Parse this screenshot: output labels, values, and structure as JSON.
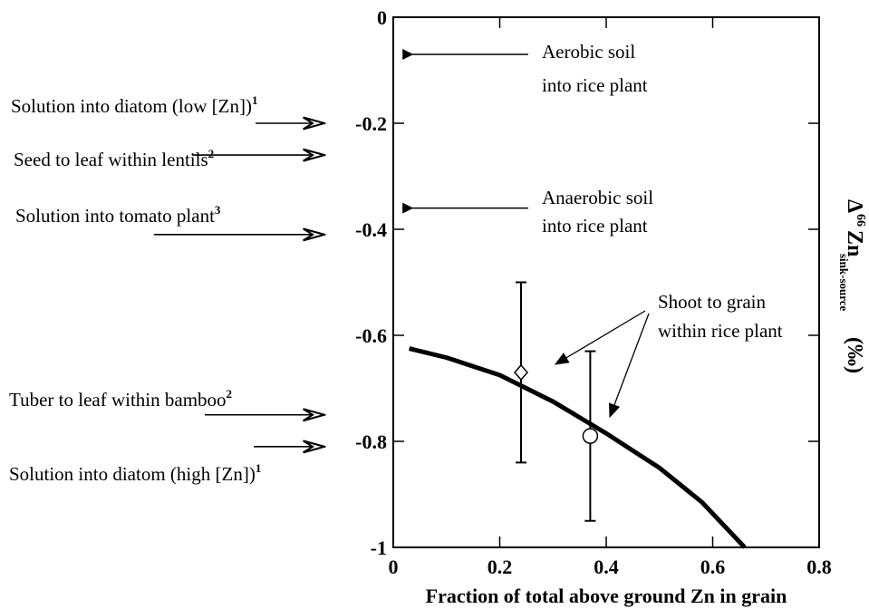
{
  "chart_data": {
    "type": "scatter",
    "xlabel": "Fraction of total above ground Zn in grain",
    "ylabel": {
      "delta": "Δ",
      "mass": "66",
      "element": "Zn",
      "subscript": "sink-source",
      "unit": "(‰)"
    },
    "xlim": [
      0,
      0.8
    ],
    "ylim": [
      -1,
      0
    ],
    "x_ticks": [
      {
        "value": 0,
        "label": "0"
      },
      {
        "value": 0.2,
        "label": "0.2"
      },
      {
        "value": 0.4,
        "label": "0.4"
      },
      {
        "value": 0.6,
        "label": "0.6"
      },
      {
        "value": 0.8,
        "label": "0.8"
      }
    ],
    "y_ticks": [
      {
        "value": 0,
        "label": "0"
      },
      {
        "value": -0.2,
        "label": "-0.2"
      },
      {
        "value": -0.4,
        "label": "-0.4"
      },
      {
        "value": -0.6,
        "label": "-0.6"
      },
      {
        "value": -0.8,
        "label": "-0.8"
      },
      {
        "value": -1,
        "label": "-1"
      }
    ],
    "grid": false,
    "series": [
      {
        "marker": "diamond",
        "points": [
          {
            "x": 0.24,
            "y": -0.67,
            "err_low": -0.84,
            "err_high": -0.5
          }
        ]
      },
      {
        "marker": "circle",
        "points": [
          {
            "x": 0.37,
            "y": -0.79,
            "err_low": -0.95,
            "err_high": -0.63
          }
        ]
      }
    ],
    "curve": [
      {
        "x": 0.03,
        "y": -0.625
      },
      {
        "x": 0.1,
        "y": -0.642
      },
      {
        "x": 0.2,
        "y": -0.675
      },
      {
        "x": 0.3,
        "y": -0.725
      },
      {
        "x": 0.4,
        "y": -0.785
      },
      {
        "x": 0.5,
        "y": -0.85
      },
      {
        "x": 0.58,
        "y": -0.915
      },
      {
        "x": 0.66,
        "y": -1.0
      }
    ],
    "arrow_markers": [
      {
        "y": -0.07,
        "text": "Aerobic soil",
        "text2": "into rice plant",
        "sup": ""
      },
      {
        "y": -0.36,
        "text": "Anaerobic soil",
        "text2": "into rice plant",
        "sup": ""
      },
      {
        "y": -0.2,
        "text": "Solution into diatom (low [Zn])",
        "sup": "1"
      },
      {
        "y": -0.26,
        "text": "Seed to leaf within lentils",
        "sup": "2"
      },
      {
        "y": -0.41,
        "text": "Solution into tomato plant",
        "sup": "3"
      },
      {
        "y": -0.75,
        "text": "Tuber to leaf within bamboo",
        "sup": "2"
      },
      {
        "y": -0.81,
        "text": "Solution into diatom (high [Zn])",
        "sup": "1"
      }
    ],
    "annotation_shoot": {
      "line1": "Shoot to grain",
      "line2": "within rice plant"
    }
  }
}
